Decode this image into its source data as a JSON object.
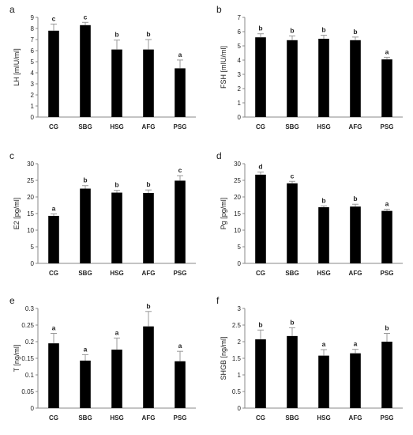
{
  "chart_data": [
    {
      "type": "bar",
      "panel": "a",
      "ylabel": "LH [mIU/ml]",
      "categories": [
        "CG",
        "SBG",
        "HSG",
        "AFG",
        "PSG"
      ],
      "values": [
        7.8,
        8.3,
        6.1,
        6.1,
        4.4
      ],
      "errors": [
        0.6,
        0.25,
        0.85,
        0.9,
        0.75
      ],
      "letters": [
        "c",
        "c",
        "b",
        "b",
        "a"
      ],
      "ylim": [
        0,
        9
      ],
      "yticks": [
        0,
        1,
        2,
        3,
        4,
        5,
        6,
        7,
        8,
        9
      ],
      "ytick_labels": [
        "0",
        "1",
        "2",
        "3",
        "4",
        "5",
        "6",
        "7",
        "8",
        "9"
      ]
    },
    {
      "type": "bar",
      "panel": "b",
      "ylabel": "FSH [mIU/ml]",
      "categories": [
        "CG",
        "SBG",
        "HSG",
        "AFG",
        "PSG"
      ],
      "values": [
        5.6,
        5.4,
        5.5,
        5.4,
        4.05
      ],
      "errors": [
        0.25,
        0.3,
        0.25,
        0.22,
        0.15
      ],
      "letters": [
        "b",
        "b",
        "b",
        "b",
        "a"
      ],
      "ylim": [
        0,
        7
      ],
      "yticks": [
        0,
        1,
        2,
        3,
        4,
        5,
        6,
        7
      ],
      "ytick_labels": [
        "0",
        "1",
        "2",
        "3",
        "4",
        "5",
        "6",
        "7"
      ]
    },
    {
      "type": "bar",
      "panel": "c",
      "ylabel": "E2 [pg/ml]",
      "categories": [
        "CG",
        "SBG",
        "HSG",
        "AFG",
        "PSG"
      ],
      "values": [
        14.3,
        22.5,
        21.3,
        21.2,
        24.9
      ],
      "errors": [
        0.6,
        0.9,
        0.7,
        0.9,
        1.5
      ],
      "letters": [
        "a",
        "b",
        "b",
        "b",
        "c"
      ],
      "ylim": [
        0,
        30
      ],
      "yticks": [
        0,
        5,
        10,
        15,
        20,
        25,
        30
      ],
      "ytick_labels": [
        "0",
        "5",
        "10",
        "15",
        "20",
        "25",
        "30"
      ]
    },
    {
      "type": "bar",
      "panel": "d",
      "ylabel": "Pg [pg/ml]",
      "categories": [
        "CG",
        "SBG",
        "HSG",
        "AFG",
        "PSG"
      ],
      "values": [
        26.7,
        24.1,
        16.9,
        17.1,
        15.8
      ],
      "errors": [
        0.8,
        0.6,
        0.4,
        0.7,
        0.5
      ],
      "letters": [
        "d",
        "c",
        "b",
        "b",
        "a"
      ],
      "ylim": [
        0,
        30
      ],
      "yticks": [
        0,
        5,
        10,
        15,
        20,
        25,
        30
      ],
      "ytick_labels": [
        "0",
        "5",
        "10",
        "15",
        "20",
        "25",
        "30"
      ]
    },
    {
      "type": "bar",
      "panel": "e",
      "ylabel": "T [ng/ml]",
      "categories": [
        "CG",
        "SBG",
        "HSG",
        "AFG",
        "PSG"
      ],
      "values": [
        0.195,
        0.143,
        0.176,
        0.246,
        0.141
      ],
      "errors": [
        0.03,
        0.018,
        0.035,
        0.045,
        0.03
      ],
      "letters": [
        "a",
        "a",
        "a",
        "b",
        "a"
      ],
      "ylim": [
        0,
        0.3
      ],
      "yticks": [
        0,
        0.05,
        0.1,
        0.15,
        0.2,
        0.25,
        0.3
      ],
      "ytick_labels": [
        "0",
        "0.05",
        "0.1",
        "0.15",
        "0.2",
        "0.25",
        "0.3"
      ]
    },
    {
      "type": "bar",
      "panel": "f",
      "ylabel": "SHGB [ng/ml]",
      "categories": [
        "CG",
        "SBG",
        "HSG",
        "AFG",
        "PSG"
      ],
      "values": [
        2.07,
        2.17,
        1.58,
        1.65,
        2.0
      ],
      "errors": [
        0.28,
        0.25,
        0.18,
        0.12,
        0.25
      ],
      "letters": [
        "b",
        "b",
        "a",
        "a",
        "b"
      ],
      "ylim": [
        0,
        3
      ],
      "yticks": [
        0,
        0.5,
        1,
        1.5,
        2,
        2.5,
        3
      ],
      "ytick_labels": [
        "0",
        "0.5",
        "1",
        "1.5",
        "2",
        "2.5",
        "3"
      ]
    }
  ],
  "colors": {
    "bar": "#000000",
    "axis": "#888888",
    "error": "#999999"
  }
}
